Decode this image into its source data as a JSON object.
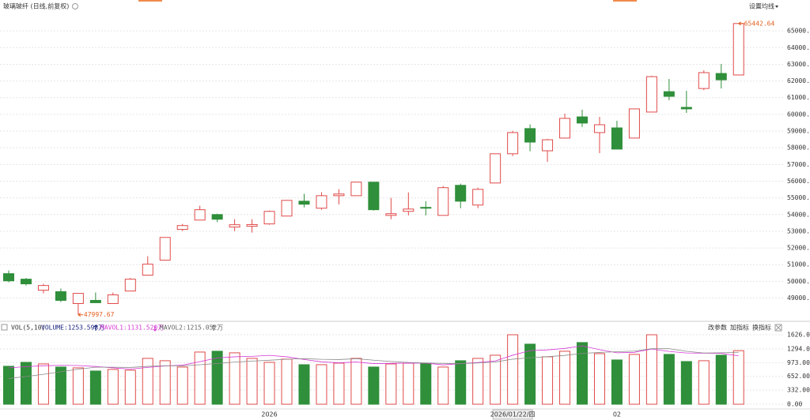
{
  "chart_data": {
    "type": "candlestick",
    "title": "玻璃玻纤 (日线,前复权)",
    "menu": "设置均线",
    "up_color": "#e04a4a",
    "down_color": "#2f8f3a",
    "ylim": [
      47700,
      66000
    ],
    "yticks": [
      {
        "value": 49000,
        "label": "49000.00"
      },
      {
        "value": 50000,
        "label": "50000.00"
      },
      {
        "value": 51000,
        "label": "51000.00"
      },
      {
        "value": 52000,
        "label": "52000.00"
      },
      {
        "value": 53000,
        "label": "53000.00"
      },
      {
        "value": 54000,
        "label": "54000.00"
      },
      {
        "value": 55000,
        "label": "55000.00"
      },
      {
        "value": 56000,
        "label": "56000.00"
      },
      {
        "value": 57000,
        "label": "57000.00"
      },
      {
        "value": 58000,
        "label": "58000.00"
      },
      {
        "value": 59000,
        "label": "59000.00"
      },
      {
        "value": 60000,
        "label": "60000.00"
      },
      {
        "value": 61000,
        "label": "61000.00"
      },
      {
        "value": 62000,
        "label": "62000.00"
      },
      {
        "value": 63000,
        "label": "63000.00"
      },
      {
        "value": 64000,
        "label": "64000.00"
      },
      {
        "value": 65000,
        "label": "65000.00"
      }
    ],
    "grid": true,
    "categories": [
      null,
      null,
      null,
      null,
      null,
      null,
      null,
      null,
      null,
      null,
      null,
      null,
      null,
      null,
      null,
      "2026",
      null,
      null,
      null,
      null,
      null,
      null,
      null,
      null,
      null,
      null,
      null,
      null,
      null,
      "2026/01/22/四",
      null,
      null,
      null,
      null,
      null,
      "02",
      null,
      null,
      null,
      null,
      null,
      null,
      null
    ],
    "open": [
      50460,
      50130,
      49470,
      49380,
      48670,
      48860,
      48670,
      49420,
      50370,
      51270,
      53110,
      53670,
      54000,
      53250,
      53300,
      53440,
      53910,
      54800,
      54380,
      55130,
      55130,
      55940,
      53950,
      54190,
      54430,
      53950,
      55750,
      54570,
      55890,
      57640,
      59150,
      57820,
      58580,
      59850,
      58910,
      59190,
      58580,
      60140,
      61360,
      60420,
      61550,
      62450,
      62360
    ],
    "high": [
      50650,
      50200,
      49850,
      49570,
      49280,
      49330,
      49330,
      50200,
      51500,
      52640,
      53440,
      54530,
      54050,
      53720,
      53720,
      54240,
      54850,
      55240,
      55340,
      55520,
      55940,
      55940,
      55000,
      55330,
      54800,
      55710,
      55850,
      55610,
      57640,
      59010,
      59400,
      58530,
      60050,
      60280,
      59850,
      59620,
      60330,
      62310,
      62120,
      61410,
      62640,
      63020,
      65442.64
    ],
    "low": [
      49940,
      49750,
      49280,
      48760,
      47997.67,
      48720,
      48670,
      49420,
      50370,
      51270,
      53010,
      53670,
      53550,
      53010,
      52920,
      53390,
      53910,
      54430,
      54290,
      54610,
      55130,
      54240,
      53720,
      53950,
      53950,
      53950,
      54380,
      54380,
      55890,
      57500,
      57790,
      57160,
      58580,
      59250,
      57680,
      57920,
      58580,
      60140,
      60850,
      60090,
      61450,
      61550,
      62360
    ],
    "close": [
      50030,
      49850,
      49750,
      48860,
      49280,
      48720,
      49190,
      50130,
      51030,
      52630,
      53340,
      54290,
      53720,
      53390,
      53400,
      54190,
      54850,
      54620,
      55130,
      55230,
      55940,
      54290,
      54050,
      54330,
      54380,
      55610,
      54800,
      55510,
      57640,
      58910,
      58340,
      58480,
      59760,
      59480,
      59380,
      57920,
      60330,
      62260,
      61080,
      60330,
      62500,
      62070,
      65442.64
    ],
    "volume": [
      888,
      980,
      943,
      870,
      851,
      777,
      814,
      796,
      1073,
      1018,
      870,
      1221,
      1240,
      1203,
      1073,
      980,
      1055,
      925,
      925,
      962,
      1073,
      870,
      943,
      962,
      962,
      870,
      1018,
      1073,
      1147,
      1626,
      1406,
      1110,
      1240,
      1443,
      1184,
      1036,
      1166,
      1626,
      1166,
      999,
      1018,
      1147,
      1253.598
    ],
    "ma_series": [
      {
        "name": "MAVOL1",
        "color": "#d63ad6",
        "values": [
          850,
          880,
          900,
          910,
          906,
          884,
          851,
          822,
          862,
          896,
          914,
          996,
          1084,
          1110,
          1121,
          1143,
          1110,
          1047,
          992,
          969,
          988,
          951,
          955,
          962,
          962,
          921,
          951,
          977,
          1014,
          1147,
          1254,
          1272,
          1306,
          1365,
          1277,
          1203,
          1214,
          1291,
          1236,
          1199,
          1195,
          1191,
          1131.52
        ]
      },
      {
        "name": "MAVOL2",
        "color": "#8a8a8a",
        "values": [
          600,
          650,
          700,
          760,
          820,
          867,
          866,
          861,
          886,
          901,
          899,
          924,
          953,
          986,
          1009,
          1029,
          1053,
          1066,
          1051,
          1045,
          1066,
          1031,
          1001,
          977,
          966,
          955,
          951,
          966,
          988,
          1055,
          1088,
          1112,
          1142,
          1190,
          1212,
          1229,
          1243,
          1299,
          1301,
          1238,
          1199,
          1203,
          1215.052
        ]
      }
    ],
    "vlim": [
      -92,
      1737
    ],
    "vticks": [
      {
        "value": 0,
        "label": "0.00"
      },
      {
        "value": 332,
        "label": "332.00"
      },
      {
        "value": 652,
        "label": "652.00"
      },
      {
        "value": 973,
        "label": "973.00"
      },
      {
        "value": 1294,
        "label": "1294.00"
      },
      {
        "value": 1626,
        "label": "1626.00"
      }
    ],
    "indicator": {
      "name": "VOL(5,10)",
      "volume": "VOLUME:1253.598万",
      "mavol1": "MAVOL1:1131.520万",
      "mavol2": "MAVOL2:1215.052万"
    },
    "buttons": [
      "改参数",
      "加指标",
      "换指标"
    ]
  }
}
